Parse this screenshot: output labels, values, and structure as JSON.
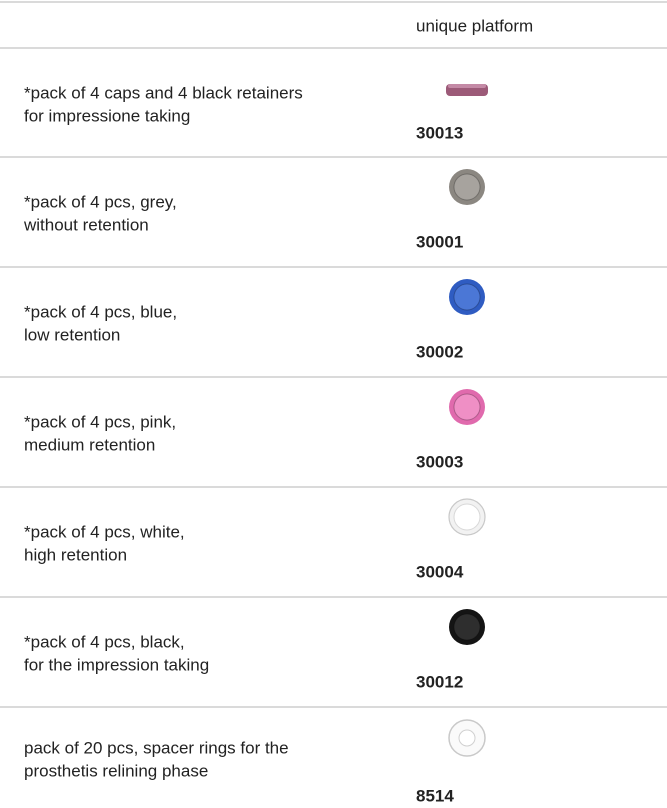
{
  "header": {
    "column": "unique platform"
  },
  "rows": [
    {
      "description": [
        "*pack of 4 caps and 4 black retainers",
        "for impressione taking"
      ],
      "code": "30013"
    },
    {
      "description": [
        "*pack of 4 pcs, grey,",
        "without retention"
      ],
      "code": "30001"
    },
    {
      "description": [
        "*pack of 4 pcs, blue,",
        "low retention"
      ],
      "code": "30002"
    },
    {
      "description": [
        "*pack of 4 pcs, pink,",
        "medium retention"
      ],
      "code": "30003"
    },
    {
      "description": [
        "*pack of 4 pcs, white,",
        "high retention"
      ],
      "code": "30004"
    },
    {
      "description": [
        "*pack of 4 pcs, black,",
        "for the impression taking"
      ],
      "code": "30012"
    },
    {
      "description": [
        "pack of 20 pcs, spacer rings for the",
        "prosthetis relining phase"
      ],
      "code": "8514"
    }
  ]
}
